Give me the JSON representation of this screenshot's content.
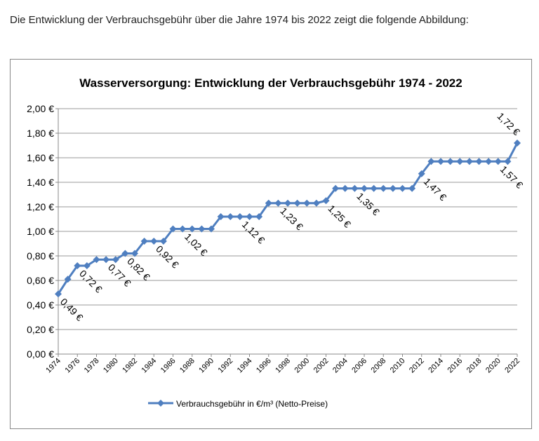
{
  "intro": "Die Entwicklung der Verbrauchsgebühr über die Jahre 1974 bis 2022 zeigt die folgende Abbildung:",
  "chart_data": {
    "type": "line",
    "title": "Wasserversorgung: Entwicklung der Verbrauchsgebühr 1974 - 2022",
    "x": [
      1974,
      1975,
      1976,
      1977,
      1978,
      1979,
      1980,
      1981,
      1982,
      1983,
      1984,
      1985,
      1986,
      1987,
      1988,
      1989,
      1990,
      1991,
      1992,
      1993,
      1994,
      1995,
      1996,
      1997,
      1998,
      1999,
      2000,
      2001,
      2002,
      2003,
      2004,
      2005,
      2006,
      2007,
      2008,
      2009,
      2010,
      2011,
      2012,
      2013,
      2014,
      2015,
      2016,
      2017,
      2018,
      2019,
      2020,
      2021,
      2022
    ],
    "series": [
      {
        "name": "Verbrauchsgebühr in €/m³ (Netto-Preise)",
        "color": "#4f7fc0",
        "values": [
          0.49,
          0.61,
          0.72,
          0.72,
          0.77,
          0.77,
          0.77,
          0.82,
          0.82,
          0.92,
          0.92,
          0.92,
          1.02,
          1.02,
          1.02,
          1.02,
          1.02,
          1.12,
          1.12,
          1.12,
          1.12,
          1.12,
          1.23,
          1.23,
          1.23,
          1.23,
          1.23,
          1.23,
          1.25,
          1.35,
          1.35,
          1.35,
          1.35,
          1.35,
          1.35,
          1.35,
          1.35,
          1.35,
          1.47,
          1.57,
          1.57,
          1.57,
          1.57,
          1.57,
          1.57,
          1.57,
          1.57,
          1.57,
          1.72
        ],
        "value_labels": [
          "0,49 €",
          null,
          "0,72 €",
          null,
          null,
          "0,77 €",
          null,
          "0,82 €",
          null,
          null,
          "0,92 €",
          null,
          null,
          "1,02 €",
          null,
          null,
          null,
          null,
          null,
          "1,12 €",
          null,
          null,
          null,
          "1,23 €",
          null,
          null,
          null,
          null,
          "1,25 €",
          null,
          null,
          "1,35 €",
          null,
          null,
          null,
          null,
          null,
          null,
          "1,47 €",
          null,
          null,
          null,
          null,
          null,
          null,
          null,
          "1,57 €",
          null,
          "1,72 €"
        ]
      }
    ],
    "xlim": [
      1974,
      2022
    ],
    "xticks": [
      1974,
      1976,
      1978,
      1980,
      1982,
      1984,
      1986,
      1988,
      1990,
      1992,
      1994,
      1996,
      1998,
      2000,
      2002,
      2004,
      2006,
      2008,
      2010,
      2012,
      2014,
      2016,
      2018,
      2020,
      2022
    ],
    "ylim": [
      0,
      2
    ],
    "yticks": [
      {
        "value": 0,
        "label": "0,00 €"
      },
      {
        "value": 0.2,
        "label": "0,20 €"
      },
      {
        "value": 0.4,
        "label": "0,40 €"
      },
      {
        "value": 0.6,
        "label": "0,60 €"
      },
      {
        "value": 0.8,
        "label": "0,80 €"
      },
      {
        "value": 1,
        "label": "1,00 €"
      },
      {
        "value": 1.2,
        "label": "1,20 €"
      },
      {
        "value": 1.4,
        "label": "1,40 €"
      },
      {
        "value": 1.6,
        "label": "1,60 €"
      },
      {
        "value": 1.8,
        "label": "1,80 €"
      },
      {
        "value": 2,
        "label": "2,00 €"
      }
    ],
    "grid": true,
    "legend": "bottom"
  }
}
